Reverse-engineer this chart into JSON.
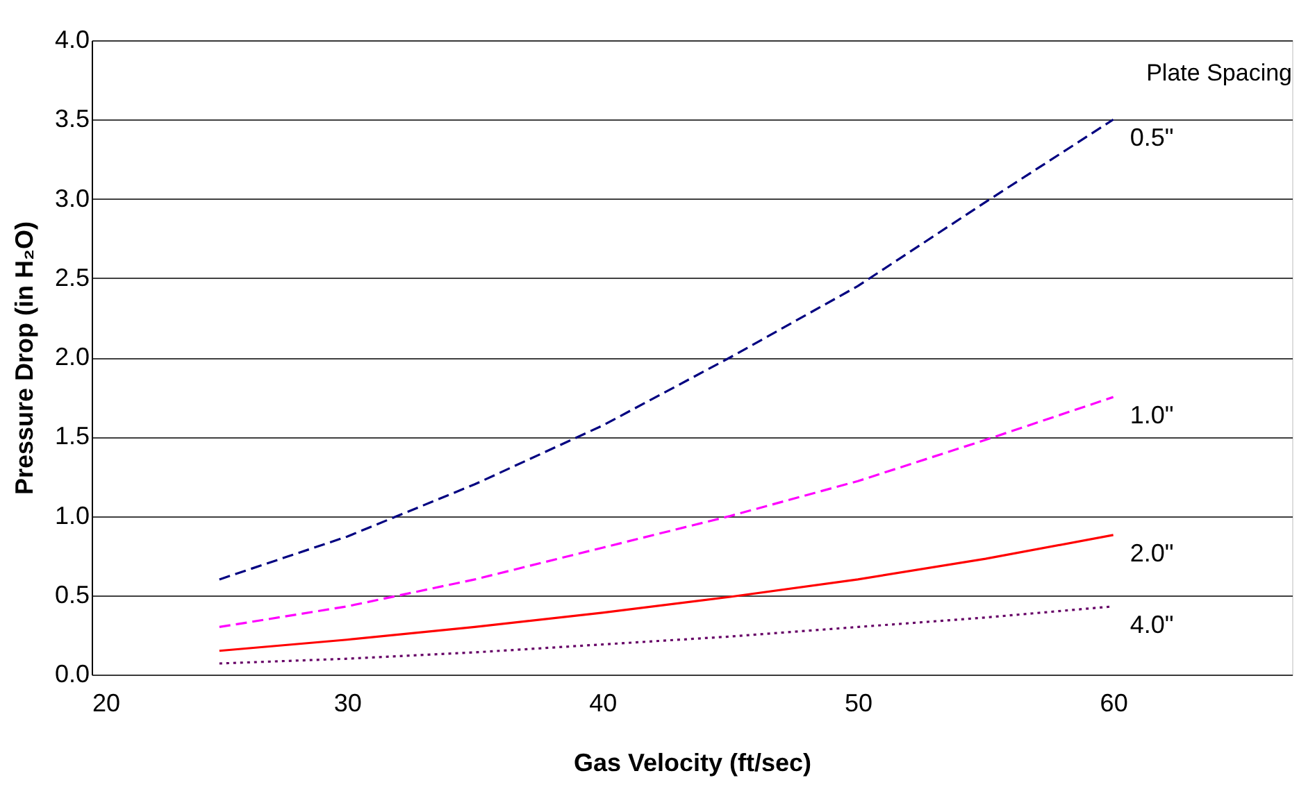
{
  "chart_data": {
    "type": "line",
    "xlabel": "Gas Velocity (ft/sec)",
    "ylabel": "Pressure Drop (in H₂O)",
    "legend_title": "Plate Spacing",
    "xlim": [
      20,
      67
    ],
    "xticks": [
      20,
      30,
      40,
      50,
      60
    ],
    "ylim": [
      0,
      4.0
    ],
    "yticks": [
      {
        "value": 0,
        "label": "0.0"
      },
      0.5,
      {
        "value": 1,
        "label": "1.0"
      },
      1.5,
      {
        "value": 2,
        "label": "2.0"
      },
      2.5,
      {
        "value": 3,
        "label": "3.0"
      },
      3.5,
      {
        "value": 4,
        "label": "4.0"
      }
    ],
    "grid": "y",
    "marker": "none",
    "x": [
      25,
      30,
      35,
      40,
      45,
      50,
      55,
      60
    ],
    "series": [
      {
        "name": "0.5\"",
        "color": "#000080",
        "line_style": "dashed",
        "values": [
          0.6,
          0.87,
          1.2,
          1.57,
          2.0,
          2.45,
          2.98,
          3.5
        ]
      },
      {
        "name": "1.0\"",
        "color": "#ff00ff",
        "line_style": "dashed",
        "values": [
          0.3,
          0.43,
          0.6,
          0.8,
          1.0,
          1.22,
          1.48,
          1.75
        ]
      },
      {
        "name": "2.0\"",
        "color": "#ff0000",
        "line_style": "solid",
        "values": [
          0.15,
          0.22,
          0.3,
          0.39,
          0.49,
          0.6,
          0.73,
          0.88
        ]
      },
      {
        "name": "4.0\"",
        "color": "#660066",
        "line_style": "dotted",
        "values": [
          0.07,
          0.1,
          0.14,
          0.19,
          0.24,
          0.3,
          0.36,
          0.43
        ]
      }
    ]
  }
}
